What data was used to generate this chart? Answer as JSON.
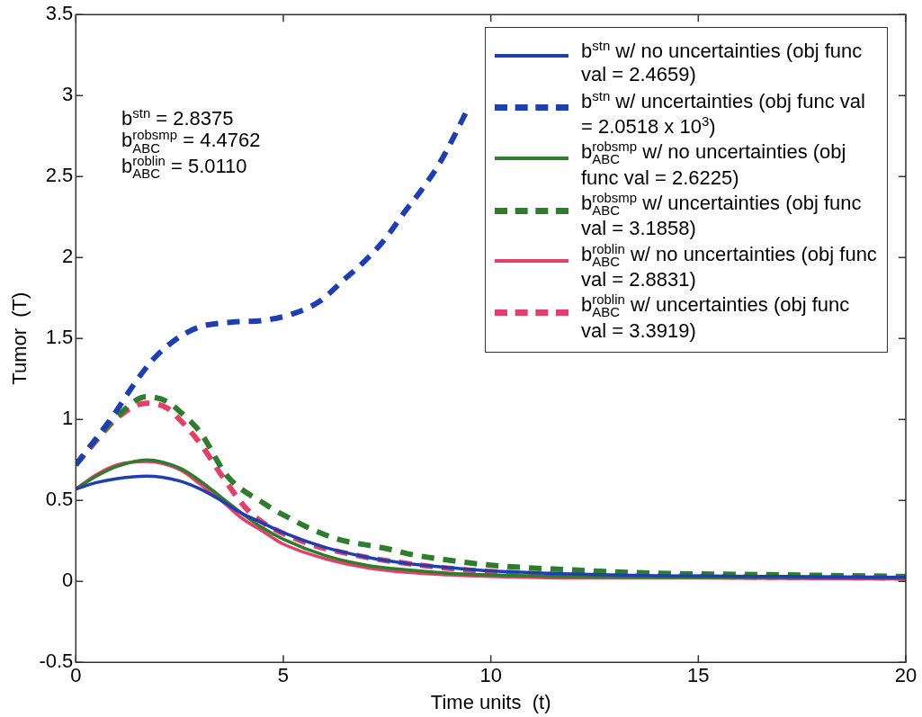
{
  "chart_data": {
    "type": "line",
    "xlabel": "Time units  (t)",
    "ylabel": "Tumor  (T)",
    "xlim": [
      0,
      20
    ],
    "xticks": [
      0,
      5,
      10,
      15,
      20
    ],
    "ylim": [
      -0.5,
      3.5
    ],
    "yticks": [
      -0.5,
      0,
      0.5,
      1,
      1.5,
      2,
      2.5,
      3,
      3.5
    ],
    "grid": false,
    "legend": "top right",
    "marker": "none",
    "annotations": [
      "b$^{stn}$ = 2.8375",
      "b$^{robsmp}$$_{ABC}$ = 4.4762",
      "b$^{roblin}$$_{ABC}$ = 5.0110"
    ],
    "series": [
      {
        "name": "b$^{stn}$ w/ no uncertainties (obj func val = 2.4659)",
        "color": "#1f3fb0",
        "line_style": "solid",
        "x": [
          0,
          0.5,
          1,
          1.7,
          2.5,
          3,
          3.5,
          4,
          4.5,
          5,
          6,
          7,
          8,
          9,
          10,
          12,
          14,
          17,
          20
        ],
        "values": [
          0.57,
          0.61,
          0.635,
          0.65,
          0.62,
          0.57,
          0.5,
          0.42,
          0.36,
          0.3,
          0.21,
          0.15,
          0.11,
          0.085,
          0.065,
          0.045,
          0.035,
          0.03,
          0.025
        ]
      },
      {
        "name": "b$^{stn}$ w/ uncertainties (obj func val = 2.0518 x 10$^{3}$)",
        "color": "#1f3fb0",
        "line_style": "dashed",
        "x": [
          0,
          0.89,
          1.41,
          1.86,
          2.39,
          2.97,
          3.73,
          4.47,
          5.21,
          5.88,
          6.45,
          6.97,
          7.44,
          7.89,
          8.34,
          8.76,
          9.12,
          9.39
        ],
        "values": [
          0.72,
          1.02,
          1.22,
          1.37,
          1.49,
          1.57,
          1.6,
          1.61,
          1.65,
          1.73,
          1.86,
          1.98,
          2.11,
          2.27,
          2.42,
          2.58,
          2.75,
          2.89
        ]
      },
      {
        "name": "b$^{robsmp}$$_{ABC}$ w/ no uncertainties (obj func val = 2.6225)",
        "color": "#2e7d2e",
        "line_style": "solid",
        "x": [
          0,
          0.5,
          1,
          1.7,
          2.5,
          3,
          3.5,
          4,
          4.5,
          5,
          6,
          7,
          8,
          9,
          10,
          12,
          15,
          20
        ],
        "values": [
          0.57,
          0.65,
          0.71,
          0.75,
          0.7,
          0.62,
          0.52,
          0.42,
          0.33,
          0.26,
          0.16,
          0.1,
          0.07,
          0.05,
          0.04,
          0.03,
          0.025,
          0.02
        ]
      },
      {
        "name": "b$^{robsmp}$$_{ABC}$ w/ uncertainties (obj func val = 3.1858)",
        "color": "#2e7d2e",
        "line_style": "dashed",
        "x": [
          0,
          0.5,
          1,
          1.7,
          2.2,
          2.5,
          3,
          3.65,
          4.54,
          5,
          6.19,
          7.53,
          8,
          9,
          10,
          12,
          14,
          17,
          20
        ],
        "values": [
          0.72,
          0.88,
          1.02,
          1.14,
          1.11,
          1.05,
          0.92,
          0.65,
          0.48,
          0.41,
          0.27,
          0.2,
          0.17,
          0.13,
          0.1,
          0.07,
          0.05,
          0.04,
          0.03
        ]
      },
      {
        "name": "b$^{roblin}$$_{ABC}$ w/ no uncertainties (obj func val = 2.8831)",
        "color": "#e0406a",
        "line_style": "solid",
        "x": [
          0,
          0.5,
          1,
          1.7,
          2.5,
          3,
          3.5,
          4,
          4.5,
          5,
          6,
          7,
          8,
          9,
          10,
          12,
          15,
          20
        ],
        "values": [
          0.57,
          0.66,
          0.72,
          0.74,
          0.69,
          0.6,
          0.5,
          0.39,
          0.31,
          0.23,
          0.14,
          0.085,
          0.055,
          0.04,
          0.03,
          0.02,
          0.02,
          0.015
        ]
      },
      {
        "name": "b$^{roblin}$$_{ABC}$ w/ uncertainties (obj func val = 3.3919)",
        "color": "#e0406a",
        "line_style": "dashed",
        "x": [
          0,
          0.5,
          1,
          1.7,
          2.2,
          2.5,
          3,
          3.5,
          4.18,
          5.43,
          6.77,
          8,
          9,
          10,
          12,
          15,
          20
        ],
        "values": [
          0.72,
          0.87,
          1.01,
          1.1,
          1.07,
          1.0,
          0.85,
          0.66,
          0.43,
          0.25,
          0.16,
          0.11,
          0.08,
          0.06,
          0.04,
          0.03,
          0.02
        ]
      }
    ]
  }
}
